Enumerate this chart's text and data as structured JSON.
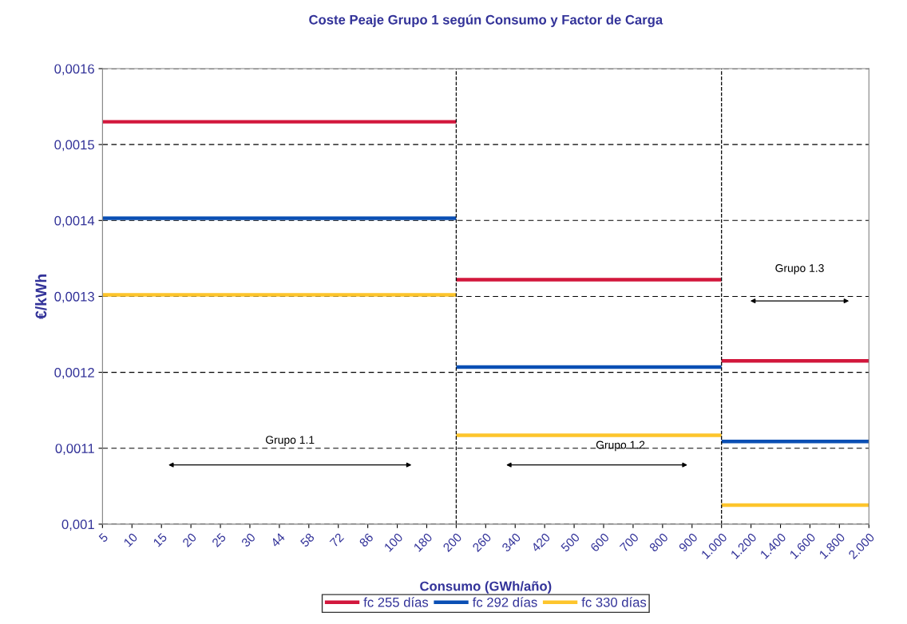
{
  "chart_data": {
    "type": "line",
    "title": "Coste Peaje Grupo 1 según Consumo y Factor de Carga",
    "xlabel": "Consumo (GWh/año)",
    "ylabel": "€/kWh",
    "categories": [
      "5",
      "10",
      "15",
      "20",
      "25",
      "30",
      "44",
      "58",
      "72",
      "86",
      "100",
      "180",
      "200",
      "260",
      "340",
      "420",
      "500",
      "600",
      "700",
      "800",
      "900",
      "1.000",
      "1.200",
      "1.400",
      "1.600",
      "1.800",
      "2.000"
    ],
    "series": [
      {
        "name": "fc 255 días",
        "color": "#d2173c",
        "values": [
          0.00153,
          0.00153,
          0.00153,
          0.00153,
          0.00153,
          0.00153,
          0.00153,
          0.00153,
          0.00153,
          0.00153,
          0.00153,
          0.00153,
          0.00153,
          null,
          null,
          null,
          null,
          null,
          null,
          null,
          null,
          null,
          null,
          null,
          null,
          null,
          null
        ]
      },
      {
        "name": "fc 292 días",
        "color": "#0a4fb4",
        "values": [
          0.001403,
          0.001403,
          0.001403,
          0.001403,
          0.001403,
          0.001403,
          0.001403,
          0.001403,
          0.001403,
          0.001403,
          0.001403,
          0.001403,
          0.001403,
          null,
          null,
          null,
          null,
          null,
          null,
          null,
          null,
          null,
          null,
          null,
          null,
          null,
          null
        ]
      },
      {
        "name": "fc 330 días",
        "color": "#fdc52c",
        "values": [
          0.001302,
          0.001302,
          0.001302,
          0.001302,
          0.001302,
          0.001302,
          0.001302,
          0.001302,
          0.001302,
          0.001302,
          0.001302,
          0.001302,
          0.001302,
          null,
          null,
          null,
          null,
          null,
          null,
          null,
          null,
          null,
          null,
          null,
          null,
          null,
          null
        ]
      },
      {
        "color": "#d2173c",
        "values": [
          null,
          null,
          null,
          null,
          null,
          null,
          null,
          null,
          null,
          null,
          null,
          null,
          0.001322,
          0.001322,
          0.001322,
          0.001322,
          0.001322,
          0.001322,
          0.001322,
          0.001322,
          0.001322,
          0.001322,
          null,
          null,
          null,
          null,
          null
        ]
      },
      {
        "color": "#0a4fb4",
        "values": [
          null,
          null,
          null,
          null,
          null,
          null,
          null,
          null,
          null,
          null,
          null,
          null,
          0.001207,
          0.001207,
          0.001207,
          0.001207,
          0.001207,
          0.001207,
          0.001207,
          0.001207,
          0.001207,
          0.001207,
          null,
          null,
          null,
          null,
          null
        ]
      },
      {
        "color": "#fdc52c",
        "values": [
          null,
          null,
          null,
          null,
          null,
          null,
          null,
          null,
          null,
          null,
          null,
          null,
          0.001117,
          0.001117,
          0.001117,
          0.001117,
          0.001117,
          0.001117,
          0.001117,
          0.001117,
          0.001117,
          0.001117,
          null,
          null,
          null,
          null,
          null
        ]
      },
      {
        "color": "#d2173c",
        "values": [
          null,
          null,
          null,
          null,
          null,
          null,
          null,
          null,
          null,
          null,
          null,
          null,
          null,
          null,
          null,
          null,
          null,
          null,
          null,
          null,
          null,
          0.001215,
          0.001215,
          0.001215,
          0.001215,
          0.001215,
          0.001215
        ]
      },
      {
        "color": "#0a4fb4",
        "values": [
          null,
          null,
          null,
          null,
          null,
          null,
          null,
          null,
          null,
          null,
          null,
          null,
          null,
          null,
          null,
          null,
          null,
          null,
          null,
          null,
          null,
          0.001109,
          0.001109,
          0.001109,
          0.001109,
          0.001109,
          0.001109
        ]
      },
      {
        "color": "#fdc52c",
        "values": [
          null,
          null,
          null,
          null,
          null,
          null,
          null,
          null,
          null,
          null,
          null,
          null,
          null,
          null,
          null,
          null,
          null,
          null,
          null,
          null,
          null,
          0.001025,
          0.001025,
          0.001025,
          0.001025,
          0.001025,
          0.001025
        ]
      }
    ],
    "ylim": [
      0.001,
      0.0016
    ],
    "yticks": [
      {
        "value": 0.001,
        "label": "0,001"
      },
      {
        "value": 0.0011,
        "label": "0,0011"
      },
      {
        "value": 0.0012,
        "label": "0,0012"
      },
      {
        "value": 0.0013,
        "label": "0,0013"
      },
      {
        "value": 0.0014,
        "label": "0,0014"
      },
      {
        "value": 0.0015,
        "label": "0,0015"
      },
      {
        "value": 0.0016,
        "label": "0,0016"
      }
    ],
    "grid": "y",
    "legend": "bottom",
    "marker": "none",
    "line_style": "solid",
    "ref_lines": [
      {
        "axis": "x",
        "value": "200",
        "color": "#000000",
        "line_style": "dashed"
      },
      {
        "axis": "x",
        "value": "1.000",
        "color": "#000000",
        "line_style": "dashed"
      }
    ],
    "annotations": [
      "Grupo 1.1",
      "Grupo 1.2",
      "Grupo 1.3"
    ]
  }
}
